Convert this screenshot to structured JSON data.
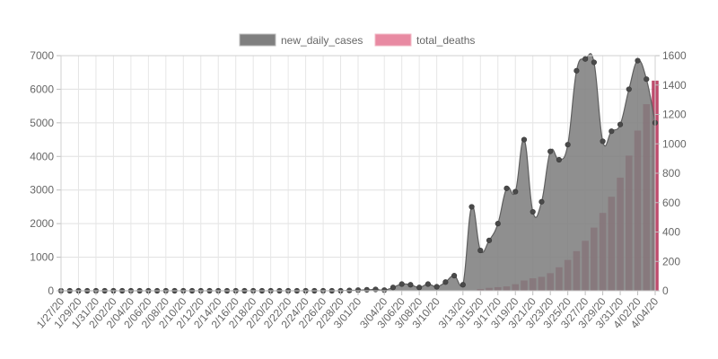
{
  "chart_data": {
    "type": "combo",
    "legend_position": "top",
    "grid": true,
    "x": [
      "1/27/20",
      "1/28/20",
      "1/29/20",
      "1/30/20",
      "1/31/20",
      "2/01/20",
      "2/02/20",
      "2/03/20",
      "2/04/20",
      "2/05/20",
      "2/06/20",
      "2/07/20",
      "2/08/20",
      "2/09/20",
      "2/10/20",
      "2/11/20",
      "2/12/20",
      "2/13/20",
      "2/14/20",
      "2/15/20",
      "2/16/20",
      "2/17/20",
      "2/18/20",
      "2/19/20",
      "2/20/20",
      "2/21/20",
      "2/22/20",
      "2/23/20",
      "2/24/20",
      "2/25/20",
      "2/26/20",
      "2/27/20",
      "2/28/20",
      "2/29/20",
      "3/01/20",
      "3/02/20",
      "3/03/20",
      "3/04/20",
      "3/05/20",
      "3/06/20",
      "3/07/20",
      "3/08/20",
      "3/09/20",
      "3/10/20",
      "3/11/20",
      "3/12/20",
      "3/13/20",
      "3/14/20",
      "3/15/20",
      "3/16/20",
      "3/17/20",
      "3/18/20",
      "3/19/20",
      "3/20/20",
      "3/21/20",
      "3/22/20",
      "3/23/20",
      "3/24/20",
      "3/25/20",
      "3/26/20",
      "3/27/20",
      "3/28/20",
      "3/29/20",
      "3/30/20",
      "3/31/20",
      "4/01/20",
      "4/02/20",
      "4/03/20",
      "4/04/20"
    ],
    "tick_labels": [
      "1/27/20",
      "1/29/20",
      "1/31/20",
      "2/02/20",
      "2/04/20",
      "2/06/20",
      "2/08/20",
      "2/10/20",
      "2/12/20",
      "2/14/20",
      "2/16/20",
      "2/18/20",
      "2/20/20",
      "2/22/20",
      "2/24/20",
      "2/26/20",
      "2/28/20",
      "3/01/20",
      "3/04/20",
      "3/06/20",
      "3/08/20",
      "3/10/20",
      "3/13/20",
      "3/15/20",
      "3/17/20",
      "3/19/20",
      "3/21/20",
      "3/23/20",
      "3/25/20",
      "3/27/20",
      "3/29/20",
      "3/31/20",
      "4/02/20",
      "4/04/20"
    ],
    "y_left": {
      "min": 0,
      "max": 7000,
      "ticks": [
        "0",
        "1000",
        "2000",
        "3000",
        "4000",
        "5000",
        "6000",
        "7000"
      ]
    },
    "y_right": {
      "min": 0,
      "max": 1600,
      "ticks": [
        "0",
        "200",
        "400",
        "600",
        "800",
        "1000",
        "1200",
        "1400",
        "1600"
      ]
    },
    "series": [
      {
        "name": "new_daily_cases",
        "type": "area",
        "axis": "left",
        "color": "#7f7f7f",
        "values": [
          0,
          0,
          0,
          0,
          0,
          0,
          0,
          0,
          0,
          0,
          0,
          0,
          0,
          0,
          0,
          0,
          0,
          0,
          0,
          0,
          0,
          0,
          0,
          0,
          0,
          0,
          0,
          0,
          0,
          0,
          0,
          0,
          0,
          10,
          20,
          30,
          40,
          20,
          100,
          200,
          180,
          100,
          200,
          120,
          260,
          450,
          180,
          2500,
          1200,
          1500,
          2000,
          3050,
          2950,
          4500,
          2350,
          2650,
          4150,
          3900,
          4350,
          6550,
          6900,
          6800,
          4450,
          4750,
          4950,
          6000,
          6850,
          6300,
          5000
        ]
      },
      {
        "name": "total_deaths",
        "type": "bar",
        "axis": "right",
        "color": "#b0234c",
        "legend_color": "#e88aa2",
        "values": [
          0,
          0,
          0,
          0,
          0,
          0,
          0,
          0,
          0,
          0,
          0,
          0,
          0,
          0,
          0,
          0,
          0,
          0,
          0,
          0,
          0,
          0,
          0,
          0,
          0,
          0,
          0,
          0,
          0,
          0,
          0,
          0,
          0,
          0,
          0,
          0,
          0,
          0,
          0,
          0,
          0,
          0,
          0,
          0,
          0,
          0,
          0,
          0,
          12,
          20,
          25,
          30,
          45,
          70,
          85,
          95,
          120,
          160,
          210,
          270,
          340,
          430,
          530,
          640,
          770,
          920,
          1090,
          1270,
          1430
        ]
      }
    ]
  }
}
